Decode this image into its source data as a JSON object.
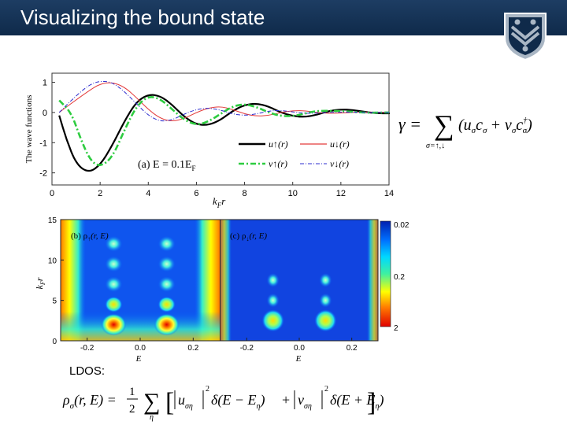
{
  "slide": {
    "title": "Visualizing the bound state",
    "ldos_label": "LDOS:",
    "logo": "rice-university-shield-icon"
  },
  "gamma_equation": {
    "lhs": "γ =",
    "operator": "∑",
    "sum_subscript": "σ=↑,↓",
    "body": "(u",
    "body_c": "c",
    "plus": "+ v",
    "c2": "c",
    "dagger": "†",
    "sigma": "σ",
    "close": ")"
  },
  "ldos_equation": {
    "lhs": "ρ",
    "lhs_sub": "σ",
    "args": "(r, E) =",
    "frac_num": "1",
    "frac_den": "2",
    "sum_sub": "η",
    "u_term": "u",
    "u_sub": "ση",
    "sq1": "2",
    "delta1": "δ(E − E",
    "eta": "η",
    "close1": ")",
    "plus": "+",
    "v_term": "v",
    "v_sub": "ση",
    "sq2": "2",
    "delta2": "δ(E + E",
    "close2": ")"
  },
  "chart_data": [
    {
      "type": "line",
      "ylabel": "The wave functions",
      "xlabel": "k",
      "xlabel_sub": "F",
      "xlabel_tail": "r",
      "xlim": [
        0,
        14
      ],
      "ylim": [
        -2.4,
        1.3
      ],
      "xticks": [
        "0",
        "2",
        "4",
        "6",
        "8",
        "10",
        "12",
        "14"
      ],
      "yticks": [
        "1",
        "0",
        "-1",
        "-2"
      ],
      "annotation": "(a) E = 0.1E",
      "annotation_sub": "F",
      "legend": [
        "u↑(r)",
        "u↓(r)",
        "v↑(r)",
        "v↓(r)"
      ],
      "series": [
        {
          "name": "u↑(r)",
          "color": "#000000",
          "style": "solid",
          "x": [
            0.3,
            0.6,
            1.0,
            1.5,
            2.0,
            2.5,
            3.0,
            3.5,
            4.0,
            4.5,
            5.0,
            5.5,
            6.0,
            6.5,
            7.0,
            7.5,
            8.0,
            8.5,
            9.0,
            9.5,
            10.0,
            10.5,
            11.0,
            11.5,
            12.0,
            12.5,
            13.0,
            13.5,
            14.0
          ],
          "y": [
            -0.1,
            -0.9,
            -1.7,
            -2.0,
            -1.75,
            -1.1,
            -0.3,
            0.35,
            0.6,
            0.55,
            0.25,
            -0.15,
            -0.4,
            -0.42,
            -0.25,
            0.05,
            0.25,
            0.3,
            0.2,
            0.0,
            -0.12,
            -0.15,
            -0.08,
            0.05,
            0.1,
            0.08,
            0.02,
            -0.03,
            -0.03
          ]
        },
        {
          "name": "u↓(r)",
          "color": "#e33b3b",
          "style": "solid",
          "x": [
            0.3,
            0.8,
            1.5,
            2.0,
            2.5,
            3.0,
            3.5,
            4.0,
            4.5,
            5.0,
            5.5,
            6.0,
            6.5,
            7.0,
            7.5,
            8.0,
            8.5,
            9.0,
            9.5,
            10.0,
            10.5,
            11.0,
            11.5,
            12.0,
            13.0,
            14.0
          ],
          "y": [
            0.0,
            0.3,
            0.7,
            0.95,
            1.0,
            0.85,
            0.5,
            0.1,
            -0.2,
            -0.3,
            -0.2,
            0.0,
            0.15,
            0.2,
            0.1,
            -0.05,
            -0.12,
            -0.1,
            0.0,
            0.06,
            0.06,
            0.0,
            -0.03,
            -0.02,
            0.02,
            0.0
          ]
        },
        {
          "name": "v↑(r)",
          "color": "#2ecc40",
          "style": "dashdot",
          "x": [
            0.3,
            0.8,
            1.2,
            1.6,
            2.0,
            2.5,
            3.0,
            3.5,
            4.0,
            4.5,
            5.0,
            5.5,
            6.0,
            6.5,
            7.0,
            7.5,
            8.0,
            8.5,
            9.0,
            9.5,
            10.0,
            10.5,
            11.0,
            12.0,
            13.0,
            14.0
          ],
          "y": [
            0.4,
            0.0,
            -0.9,
            -1.6,
            -1.8,
            -1.5,
            -0.6,
            0.2,
            0.55,
            0.45,
            0.1,
            -0.25,
            -0.42,
            -0.3,
            -0.05,
            0.2,
            0.28,
            0.18,
            0.0,
            -0.12,
            -0.12,
            -0.04,
            0.06,
            0.05,
            -0.01,
            0.0
          ]
        },
        {
          "name": "v↓(r)",
          "color": "#2d2dcf",
          "style": "dashdot",
          "x": [
            0.3,
            0.8,
            1.5,
            2.0,
            2.5,
            3.0,
            3.5,
            4.0,
            4.5,
            5.0,
            5.5,
            6.0,
            6.5,
            7.0,
            7.5,
            8.0,
            8.5,
            9.0,
            9.5,
            10.0,
            10.5,
            11.0,
            12.0,
            13.0,
            14.0
          ],
          "y": [
            0.0,
            0.4,
            0.9,
            1.05,
            1.0,
            0.7,
            0.3,
            -0.1,
            -0.3,
            -0.25,
            -0.05,
            0.1,
            0.15,
            0.08,
            -0.05,
            -0.1,
            -0.05,
            0.05,
            0.07,
            0.02,
            -0.03,
            -0.02,
            0.02,
            0.0,
            0.0
          ]
        }
      ]
    },
    {
      "type": "heatmap",
      "annotation_b": "(b) ρ",
      "annotation_b_sub": "↑",
      "annotation_c": "(c) ρ",
      "annotation_c_sub": "↓",
      "annotation_args": "(r, E)",
      "xlabel": "E",
      "ylabel": "k",
      "ylabel_sub": "F",
      "ylabel_tail": "r",
      "xticks": [
        "-0.2",
        "0.0",
        "0.2"
      ],
      "yticks": [
        "15",
        "10",
        "5",
        "0"
      ],
      "ylim": [
        0,
        15
      ],
      "xlim": [
        -0.3,
        0.3
      ],
      "colorbar_ticks": [
        "0.02",
        "0.2",
        "2"
      ],
      "colorbar_scale": "log",
      "panel_b_bound_state_energies": [
        -0.1,
        0.1
      ],
      "panel_c_bound_state_energies": [
        -0.1,
        0.1
      ],
      "panel_b_peak_radii": [
        2.0,
        4.5,
        7.0,
        9.5,
        12.0
      ],
      "panel_c_peak_radii": [
        2.5,
        5.0,
        7.5
      ]
    }
  ]
}
